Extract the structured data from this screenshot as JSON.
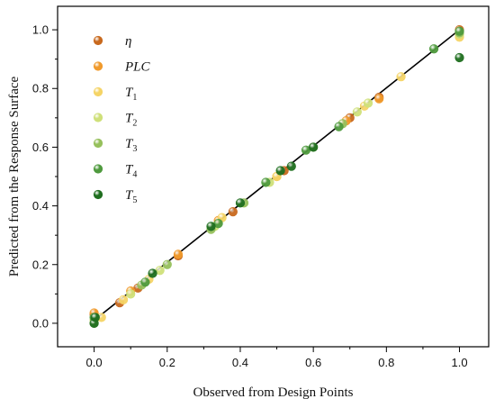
{
  "chart_data": {
    "type": "scatter",
    "title": "",
    "xlabel": "Observed from Design Points",
    "ylabel": "Predicted from the Response Surface",
    "xlim": [
      -0.1,
      1.08
    ],
    "ylim": [
      -0.08,
      1.08
    ],
    "xticks": [
      "0.0",
      "0.2",
      "0.4",
      "0.6",
      "0.8",
      "1.0"
    ],
    "yticks": [
      "0.0",
      "0.2",
      "0.4",
      "0.6",
      "0.8",
      "1.0"
    ],
    "grid": false,
    "legend_position": "top-left",
    "fit_line": {
      "x": [
        0.0,
        1.0
      ],
      "y": [
        0.01,
        1.0
      ],
      "color": "#000000"
    },
    "series": [
      {
        "name": "η",
        "base": "η",
        "sub": "",
        "color": "#c8691e",
        "points": [
          [
            0.0,
            0.03
          ],
          [
            0.07,
            0.07
          ],
          [
            0.12,
            0.12
          ],
          [
            0.23,
            0.23
          ],
          [
            0.38,
            0.38
          ],
          [
            0.52,
            0.52
          ],
          [
            0.7,
            0.7
          ],
          [
            0.78,
            0.77
          ],
          [
            1.0,
            1.0
          ]
        ]
      },
      {
        "name": "PLC",
        "base": "PLC",
        "sub": "",
        "color": "#f09a2c",
        "points": [
          [
            0.0,
            0.035
          ],
          [
            0.1,
            0.11
          ],
          [
            0.23,
            0.235
          ],
          [
            0.34,
            0.35
          ],
          [
            0.5,
            0.5
          ],
          [
            0.69,
            0.69
          ],
          [
            0.78,
            0.765
          ],
          [
            1.0,
            0.995
          ]
        ]
      },
      {
        "name": "T1",
        "base": "T",
        "sub": "1",
        "color": "#f5d466",
        "points": [
          [
            0.02,
            0.02
          ],
          [
            0.08,
            0.08
          ],
          [
            0.15,
            0.15
          ],
          [
            0.35,
            0.36
          ],
          [
            0.5,
            0.5
          ],
          [
            0.74,
            0.74
          ],
          [
            0.84,
            0.84
          ],
          [
            1.0,
            0.975
          ]
        ]
      },
      {
        "name": "T2",
        "base": "T",
        "sub": "2",
        "color": "#cfe07a",
        "points": [
          [
            0.0,
            0.01
          ],
          [
            0.1,
            0.1
          ],
          [
            0.18,
            0.18
          ],
          [
            0.33,
            0.33
          ],
          [
            0.48,
            0.48
          ],
          [
            0.72,
            0.72
          ],
          [
            0.75,
            0.75
          ],
          [
            1.0,
            0.985
          ]
        ]
      },
      {
        "name": "T3",
        "base": "T",
        "sub": "3",
        "color": "#96c05c",
        "points": [
          [
            0.0,
            0.0
          ],
          [
            0.13,
            0.13
          ],
          [
            0.2,
            0.2
          ],
          [
            0.32,
            0.32
          ],
          [
            0.41,
            0.41
          ],
          [
            0.6,
            0.6
          ],
          [
            0.68,
            0.68
          ],
          [
            1.0,
            0.99
          ]
        ]
      },
      {
        "name": "T4",
        "base": "T",
        "sub": "4",
        "color": "#4f9a3e",
        "points": [
          [
            0.0,
            0.02
          ],
          [
            0.14,
            0.14
          ],
          [
            0.34,
            0.34
          ],
          [
            0.47,
            0.48
          ],
          [
            0.58,
            0.59
          ],
          [
            0.67,
            0.67
          ],
          [
            0.93,
            0.935
          ],
          [
            1.0,
            0.995
          ]
        ]
      },
      {
        "name": "T5",
        "base": "T",
        "sub": "5",
        "color": "#1f6e1f",
        "points": [
          [
            0.0,
            0.0
          ],
          [
            0.003,
            0.02
          ],
          [
            0.16,
            0.17
          ],
          [
            0.32,
            0.33
          ],
          [
            0.4,
            0.41
          ],
          [
            0.51,
            0.52
          ],
          [
            0.54,
            0.535
          ],
          [
            0.6,
            0.6
          ],
          [
            1.0,
            0.905
          ]
        ]
      }
    ]
  }
}
